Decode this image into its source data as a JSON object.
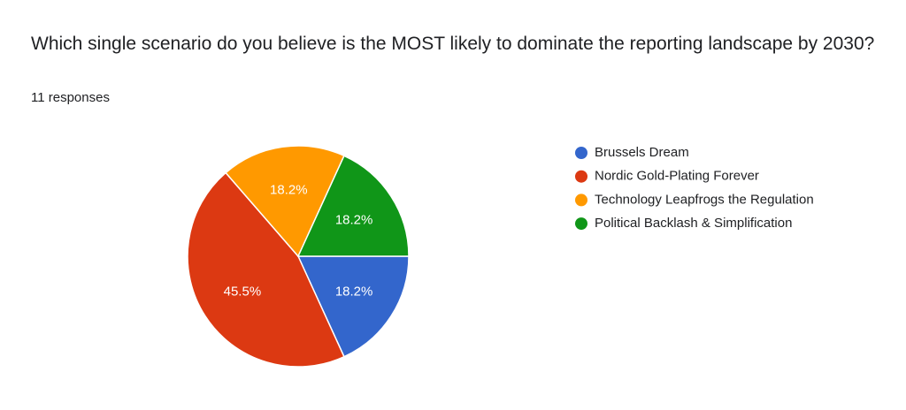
{
  "chart_data": {
    "type": "pie",
    "title": "Which single scenario do you believe is the MOST likely to dominate the reporting landscape by 2030?",
    "subtitle": "11 responses",
    "categories": [
      "Brussels Dream",
      "Nordic Gold-Plating Forever",
      "Technology Leapfrogs the Regulation",
      "Political Backlash & Simplification"
    ],
    "values": [
      18.2,
      45.5,
      18.2,
      18.2
    ],
    "value_labels": [
      "18.2%",
      "45.5%",
      "18.2%",
      "18.2%"
    ],
    "colors": [
      "#3366cc",
      "#dc3912",
      "#ff9900",
      "#109618"
    ],
    "legend": "right"
  }
}
